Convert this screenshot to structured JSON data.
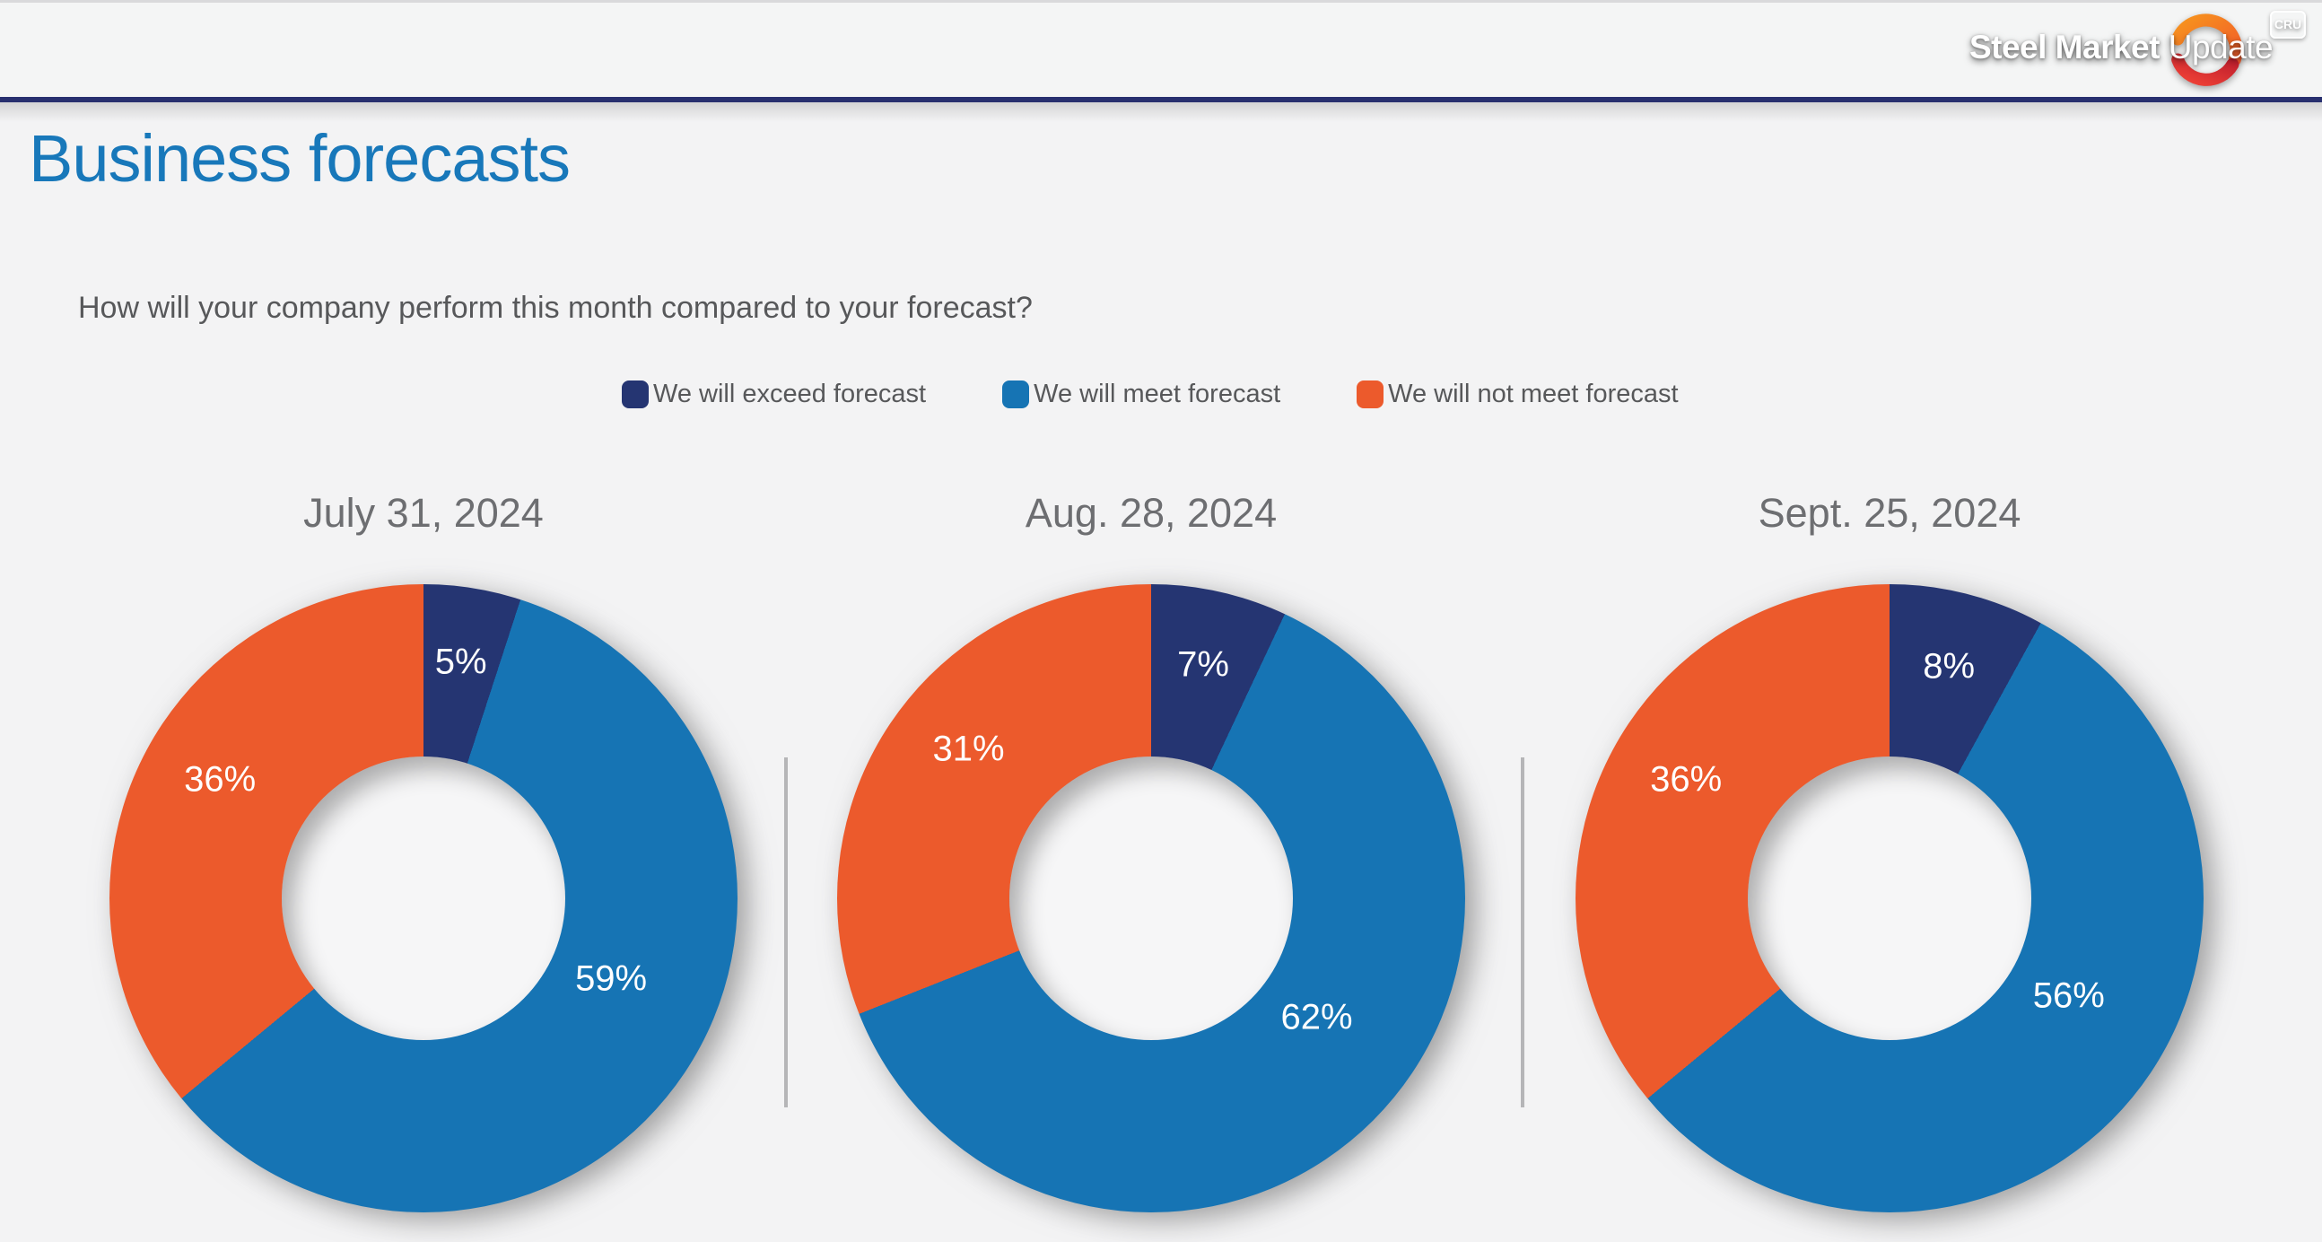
{
  "brand": {
    "name_bold": "Steel Market",
    "name_light": "Update",
    "badge": "CRU"
  },
  "page_title": "Business forecasts",
  "question": "How will your company perform this month compared to your forecast?",
  "legend": [
    {
      "label": "We will exceed forecast",
      "color": "#253572"
    },
    {
      "label": "We will meet forecast",
      "color": "#1674b4"
    },
    {
      "label": "We will not meet forecast",
      "color": "#ec5a2c"
    }
  ],
  "chart_data": {
    "type": "pie",
    "subtype": "donut",
    "legend_position": "top",
    "series_labels": [
      "We will exceed forecast",
      "We will meet forecast",
      "We will not meet forecast"
    ],
    "colors": [
      "#253572",
      "#1674b4",
      "#ec5a2c"
    ],
    "start_angle_deg": 0,
    "direction": "clockwise",
    "charts": [
      {
        "title": "July 31, 2024",
        "values": [
          5,
          59,
          36
        ],
        "display_labels": [
          "5%",
          "59%",
          "36%"
        ]
      },
      {
        "title": "Aug. 28, 2024",
        "values": [
          7,
          62,
          31
        ],
        "display_labels": [
          "7%",
          "62%",
          "31%"
        ]
      },
      {
        "title": "Sept. 25, 2024",
        "values": [
          8,
          56,
          36
        ],
        "display_labels": [
          "8%",
          "56%",
          "36%"
        ]
      }
    ],
    "label_color": "#ffffff",
    "hole_color": "#f6f6f7"
  }
}
